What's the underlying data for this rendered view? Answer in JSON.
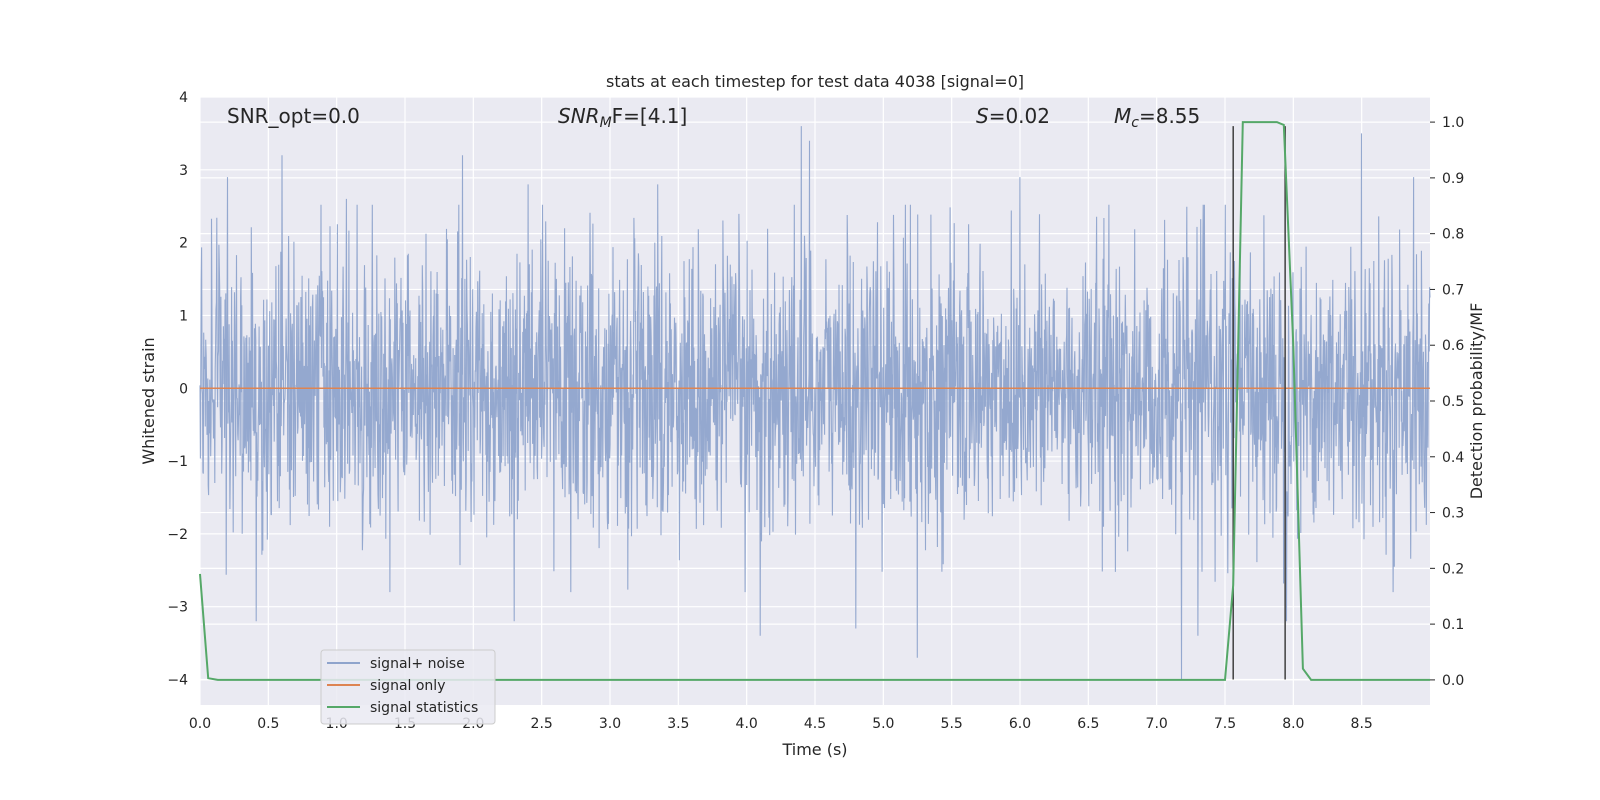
{
  "chart_data": {
    "type": "line",
    "title": "stats at each timestep for test data 4038 [signal=0]",
    "xlabel": "Time (s)",
    "ylabel": "Whitened strain",
    "y2label": "Detection probability/MF",
    "xlim": [
      0.0,
      9.0
    ],
    "ylim": [
      -4.35,
      4.0
    ],
    "y2lim": [
      -0.045,
      1.045
    ],
    "xticks": [
      "0.0",
      "0.5",
      "1.0",
      "1.5",
      "2.0",
      "2.5",
      "3.0",
      "3.5",
      "4.0",
      "4.5",
      "5.0",
      "5.5",
      "6.0",
      "6.5",
      "7.0",
      "7.5",
      "8.0",
      "8.5"
    ],
    "yticks": [
      "−4",
      "−3",
      "−2",
      "−1",
      "0",
      "1",
      "2",
      "3",
      "4"
    ],
    "y2ticks": [
      "0.0",
      "0.1",
      "0.2",
      "0.3",
      "0.4",
      "0.5",
      "0.6",
      "0.7",
      "0.8",
      "0.9",
      "1.0"
    ],
    "grid": true,
    "legend_position": "lower-left",
    "annotations": {
      "snr_opt": "SNR_opt=0.0",
      "snr_mf_main": "SNR",
      "snr_mf_sub": "M",
      "snr_mf_tail": "F=[4.1]",
      "s_sym": "S",
      "s_val": "=0.02",
      "mc_sym": "M",
      "mc_sub": "c",
      "mc_val": "=8.55"
    },
    "series": [
      {
        "name": "signal+ noise",
        "color": "#8fa4cc",
        "description_kind": "noise",
        "amplitude_range": [
          -4.0,
          3.6
        ],
        "peak_spikes": [
          [
            0.2,
            2.9
          ],
          [
            0.41,
            -3.2
          ],
          [
            0.6,
            3.2
          ],
          [
            1.07,
            2.6
          ],
          [
            1.39,
            -2.8
          ],
          [
            1.92,
            3.2
          ],
          [
            2.3,
            -3.2
          ],
          [
            2.4,
            2.8
          ],
          [
            3.35,
            2.8
          ],
          [
            4.1,
            -3.4
          ],
          [
            4.4,
            3.6
          ],
          [
            4.46,
            3.4
          ],
          [
            4.8,
            -3.3
          ],
          [
            5.25,
            -3.7
          ],
          [
            6.0,
            2.9
          ],
          [
            7.18,
            -4.0
          ],
          [
            7.3,
            -3.4
          ],
          [
            7.95,
            -3.2
          ],
          [
            8.5,
            3.5
          ],
          [
            8.88,
            2.9
          ]
        ]
      },
      {
        "name": "signal only",
        "color": "#dd8452",
        "x": [
          0.0,
          9.0
        ],
        "y": [
          0.0,
          0.0
        ]
      },
      {
        "name": "signal statistics",
        "color": "#55a868",
        "axis": "right",
        "x": [
          0.0,
          0.06,
          0.13,
          7.5,
          7.56,
          7.63,
          7.88,
          7.93,
          8.0,
          8.07,
          8.13,
          9.0
        ],
        "y": [
          0.19,
          0.003,
          0.0,
          0.0,
          0.17,
          1.0,
          1.0,
          0.995,
          0.6,
          0.02,
          0.0,
          0.0
        ]
      }
    ],
    "vlines": [
      {
        "x": 7.56,
        "ymin": -4.0,
        "ymax": 3.6,
        "color": "#404040"
      },
      {
        "x": 7.94,
        "ymin": -4.0,
        "ymax": 3.6,
        "color": "#404040"
      }
    ]
  }
}
